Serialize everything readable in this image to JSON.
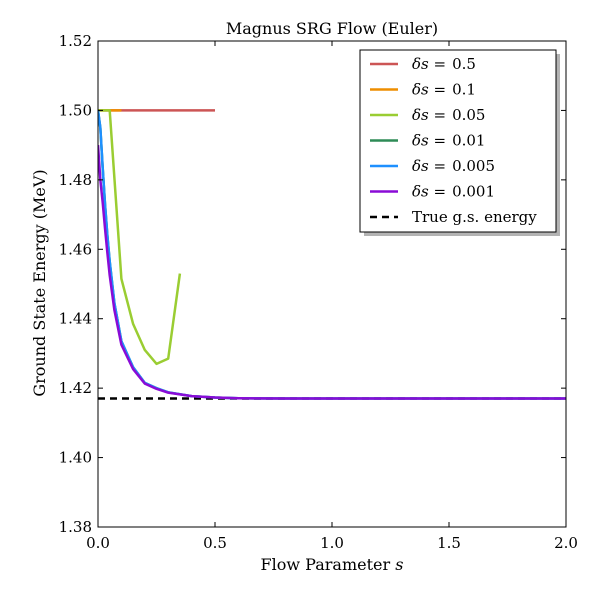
{
  "chart_data": {
    "type": "line",
    "title": "Magnus SRG Flow (Euler)",
    "xlabel": "Flow Parameter ",
    "xlabel_var": "s",
    "ylabel": "Ground State Energy (MeV)",
    "xlim": [
      0.0,
      2.0
    ],
    "ylim": [
      1.38,
      1.52
    ],
    "xticks": [
      "0.0",
      "0.5",
      "1.0",
      "1.5",
      "2.0"
    ],
    "yticks": [
      "1.38",
      "1.40",
      "1.42",
      "1.44",
      "1.46",
      "1.48",
      "1.50",
      "1.52"
    ],
    "grid": false,
    "legend_position": "top-right",
    "series": [
      {
        "name": "0.5",
        "legend_prefix": "δs =",
        "color": "#cc5555",
        "dash": "solid",
        "points": [
          [
            0.0,
            1.5
          ],
          [
            0.5,
            1.5
          ]
        ]
      },
      {
        "name": "0.1",
        "legend_prefix": "δs =",
        "color": "#ee8e00",
        "dash": "solid",
        "points": [
          [
            0.0,
            1.5
          ],
          [
            0.1,
            1.5
          ]
        ]
      },
      {
        "name": "0.05",
        "legend_prefix": "δs =",
        "color": "#9acd32",
        "dash": "solid",
        "points": [
          [
            0.0,
            1.5
          ],
          [
            0.05,
            1.5
          ],
          [
            0.1,
            1.4515
          ],
          [
            0.15,
            1.4385
          ],
          [
            0.2,
            1.431
          ],
          [
            0.25,
            1.427
          ],
          [
            0.3,
            1.4285
          ],
          [
            0.35,
            1.453
          ]
        ]
      },
      {
        "name": "0.01",
        "legend_prefix": "δs =",
        "color": "#2e8b57",
        "dash": "solid",
        "points": [
          [
            0.0,
            1.5
          ],
          [
            0.01,
            1.495
          ],
          [
            0.02,
            1.4835
          ],
          [
            0.03,
            1.473
          ],
          [
            0.04,
            1.464
          ],
          [
            0.05,
            1.4565
          ],
          [
            0.07,
            1.4445
          ],
          [
            0.1,
            1.4335
          ],
          [
            0.15,
            1.426
          ],
          [
            0.2,
            1.4215
          ],
          [
            0.25,
            1.42
          ],
          [
            0.3,
            1.4188
          ],
          [
            0.4,
            1.4177
          ],
          [
            0.5,
            1.4173
          ],
          [
            0.6,
            1.4171
          ],
          [
            0.8,
            1.417
          ],
          [
            1.0,
            1.417
          ],
          [
            1.5,
            1.417
          ],
          [
            2.0,
            1.417
          ]
        ]
      },
      {
        "name": "0.005",
        "legend_prefix": "δs =",
        "color": "#1e90ff",
        "dash": "solid",
        "points": [
          [
            0.0,
            1.5
          ],
          [
            0.01,
            1.495
          ],
          [
            0.02,
            1.4835
          ],
          [
            0.03,
            1.473
          ],
          [
            0.04,
            1.464
          ],
          [
            0.05,
            1.4565
          ],
          [
            0.07,
            1.4445
          ],
          [
            0.1,
            1.4335
          ],
          [
            0.15,
            1.426
          ],
          [
            0.2,
            1.4215
          ],
          [
            0.25,
            1.42
          ],
          [
            0.3,
            1.4188
          ],
          [
            0.4,
            1.4177
          ],
          [
            0.5,
            1.4173
          ],
          [
            0.6,
            1.4171
          ],
          [
            0.8,
            1.417
          ],
          [
            1.0,
            1.417
          ],
          [
            1.5,
            1.417
          ],
          [
            2.0,
            1.417
          ]
        ]
      },
      {
        "name": "0.001",
        "legend_prefix": "δs =",
        "color": "#8a0bd6",
        "dash": "solid",
        "points": [
          [
            0.0,
            1.49
          ],
          [
            0.01,
            1.48
          ],
          [
            0.02,
            1.4735
          ],
          [
            0.03,
            1.466
          ],
          [
            0.04,
            1.459
          ],
          [
            0.05,
            1.4525
          ],
          [
            0.07,
            1.4425
          ],
          [
            0.1,
            1.4325
          ],
          [
            0.15,
            1.4255
          ],
          [
            0.2,
            1.4213
          ],
          [
            0.25,
            1.4198
          ],
          [
            0.3,
            1.4187
          ],
          [
            0.4,
            1.4177
          ],
          [
            0.5,
            1.4173
          ],
          [
            0.6,
            1.4171
          ],
          [
            0.8,
            1.417
          ],
          [
            1.0,
            1.417
          ],
          [
            1.5,
            1.417
          ],
          [
            2.0,
            1.417
          ]
        ]
      },
      {
        "name": "True g.s. energy",
        "color": "#000000",
        "dash": "dashed",
        "points": [
          [
            0.0,
            1.417
          ],
          [
            2.0,
            1.417
          ]
        ]
      }
    ]
  }
}
